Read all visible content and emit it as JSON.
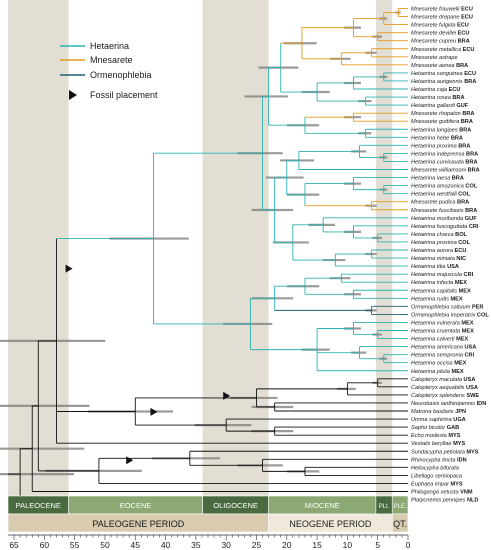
{
  "legend": {
    "items": [
      {
        "label": "Hetaerina",
        "color": "#2bb3b3"
      },
      {
        "label": "Mnesarete",
        "color": "#e59a1c"
      },
      {
        "label": "Ormenophlebia",
        "color": "#1f5f73"
      }
    ],
    "fossil_label": "Fossil placement"
  },
  "taxa": [
    {
      "name": "Mnesarete frauwelli",
      "cc": "ECU"
    },
    {
      "name": "Mnesarete drepane",
      "cc": "ECU"
    },
    {
      "name": "Mnesarete fulgida",
      "cc": "ECU"
    },
    {
      "name": "Mnesarete devillei",
      "cc": "ECU"
    },
    {
      "name": "Mnesarete cupreu",
      "cc": "BRA"
    },
    {
      "name": "Mnesarete metallica",
      "cc": "ECU"
    },
    {
      "name": "Mnesarete astrape",
      "cc": ""
    },
    {
      "name": "Mnesarete aenea",
      "cc": "BRA"
    },
    {
      "name": "Hetaerina sanguinea",
      "cc": "ECU"
    },
    {
      "name": "Hetaerina aurigennis",
      "cc": "BRA"
    },
    {
      "name": "Hetaerina caja",
      "cc": "ECU"
    },
    {
      "name": "Hetaerina rosea",
      "cc": "BRA"
    },
    {
      "name": "Hetaerina gallardi",
      "cc": "GUF"
    },
    {
      "name": "Mnesarete rhopalon",
      "cc": "BRA"
    },
    {
      "name": "Mnesarete guttifera",
      "cc": "BRA"
    },
    {
      "name": "Hetaerina longipes",
      "cc": "BRA"
    },
    {
      "name": "Hetaerina hebe",
      "cc": "BRA"
    },
    {
      "name": "Hetaerina proxima",
      "cc": "BRA"
    },
    {
      "name": "Hetaerina indeprensa",
      "cc": "BRA"
    },
    {
      "name": "Hetaerina curvicauda",
      "cc": "BRA"
    },
    {
      "name": "Mnesarete williamsoni",
      "cc": "BRA"
    },
    {
      "name": "Hetaerina laesa",
      "cc": "BRA"
    },
    {
      "name": "Hetaerina amazonica",
      "cc": "COL"
    },
    {
      "name": "Hetaerina westfalli",
      "cc": "COL"
    },
    {
      "name": "Mnesarete pudica",
      "cc": "BRA"
    },
    {
      "name": "Mnesarete fuscibasis",
      "cc": "BRA"
    },
    {
      "name": "Hetaerina moribunda",
      "cc": "GUF"
    },
    {
      "name": "Hetaerina fuscoguttata",
      "cc": "CRI"
    },
    {
      "name": "Hetaerina charca",
      "cc": "BOL"
    },
    {
      "name": "Hetaerina proxima",
      "cc": "COL"
    },
    {
      "name": "Hetaerina aurora",
      "cc": "ECU"
    },
    {
      "name": "Hetaerina miniata",
      "cc": "NIC"
    },
    {
      "name": "Hetaerina titia",
      "cc": "USA"
    },
    {
      "name": "Hetaerina majuscula",
      "cc": "CRI"
    },
    {
      "name": "Hetaerina infecta",
      "cc": "MEX"
    },
    {
      "name": "Hetaerina capitalis",
      "cc": "MEX"
    },
    {
      "name": "Hetaerina rudis",
      "cc": "MEX"
    },
    {
      "name": "Ormenophlebia saltuum",
      "cc": "PER"
    },
    {
      "name": "Ormenophlebia imperatrix",
      "cc": "COL"
    },
    {
      "name": "Hetaerina vulnerata",
      "cc": "MEX"
    },
    {
      "name": "Hetaerina cruentata",
      "cc": "MEX"
    },
    {
      "name": "Hetaerina calverti",
      "cc": "MEX"
    },
    {
      "name": "Hetaerina americana",
      "cc": "USA"
    },
    {
      "name": "Hetaerina sempronia",
      "cc": "CRI"
    },
    {
      "name": "Hetaerina occisa",
      "cc": "MEX"
    },
    {
      "name": "Hetaerina pilula",
      "cc": "MEX"
    },
    {
      "name": "Calopteryx maculata",
      "cc": "USA"
    },
    {
      "name": "Calopteryx aequabilis",
      "cc": "USA"
    },
    {
      "name": "Calopteryx splendens",
      "cc": "SWE"
    },
    {
      "name": "Neurobasis ianthinipennis",
      "cc": "IDN"
    },
    {
      "name": "Matrona basilaris",
      "cc": "JPN"
    },
    {
      "name": "Umma saphirina",
      "cc": "UGA"
    },
    {
      "name": "Sapho bicolor",
      "cc": "GAB"
    },
    {
      "name": "Echo modesta",
      "cc": "MYS"
    },
    {
      "name": "Vestalis beryllae",
      "cc": "MYS"
    },
    {
      "name": "Sundacypha petiolata",
      "cc": "MYS"
    },
    {
      "name": "Rhinocypha tincta",
      "cc": "IDN"
    },
    {
      "name": "Heliocypha biforata",
      "cc": ""
    },
    {
      "name": "Libellago semiopaca",
      "cc": ""
    },
    {
      "name": "Euphaea impar",
      "cc": "MYS"
    },
    {
      "name": "Philoganga vetusta",
      "cc": "VNM"
    },
    {
      "name": "Platycnemis pennipes",
      "cc": "NLD"
    }
  ],
  "epochs": [
    {
      "label": "PALEOCENE",
      "start": 66,
      "end": 56,
      "color": "#4a6b3f"
    },
    {
      "label": "EOCENE",
      "start": 56,
      "end": 33.9,
      "color": "#8ca873"
    },
    {
      "label": "OLIGOCENE",
      "start": 33.9,
      "end": 23,
      "color": "#4a6b3f"
    },
    {
      "label": "MIOCENE",
      "start": 23,
      "end": 5.3,
      "color": "#8ca873"
    },
    {
      "label": "PLI.",
      "start": 5.3,
      "end": 2.6,
      "color": "#4a6b3f"
    },
    {
      "label": "PLE.",
      "start": 2.6,
      "end": 0,
      "color": "#8ca873"
    }
  ],
  "periods": [
    {
      "label": "PALEOGENE PERIOD",
      "start": 66,
      "end": 23,
      "color": "#d8cbb0"
    },
    {
      "label": "NEOGENE PERIOD",
      "start": 23,
      "end": 2.6,
      "color": "#efe8db"
    },
    {
      "label": "QT.",
      "start": 2.6,
      "end": 0,
      "color": "#d8cbb0"
    }
  ],
  "axis": {
    "ticks": [
      "65",
      "60",
      "55",
      "50",
      "45",
      "40",
      "35",
      "30",
      "25",
      "20",
      "15",
      "10",
      "5",
      "0"
    ],
    "min": 0,
    "max": 66
  },
  "colors": {
    "hetaerina": "#2bb3b3",
    "mnesarete": "#e59a1c",
    "ormenophlebia": "#1f5f73",
    "outgroup": "#111111",
    "bars": "#7a7a7a",
    "shade": "#e3ded3"
  }
}
